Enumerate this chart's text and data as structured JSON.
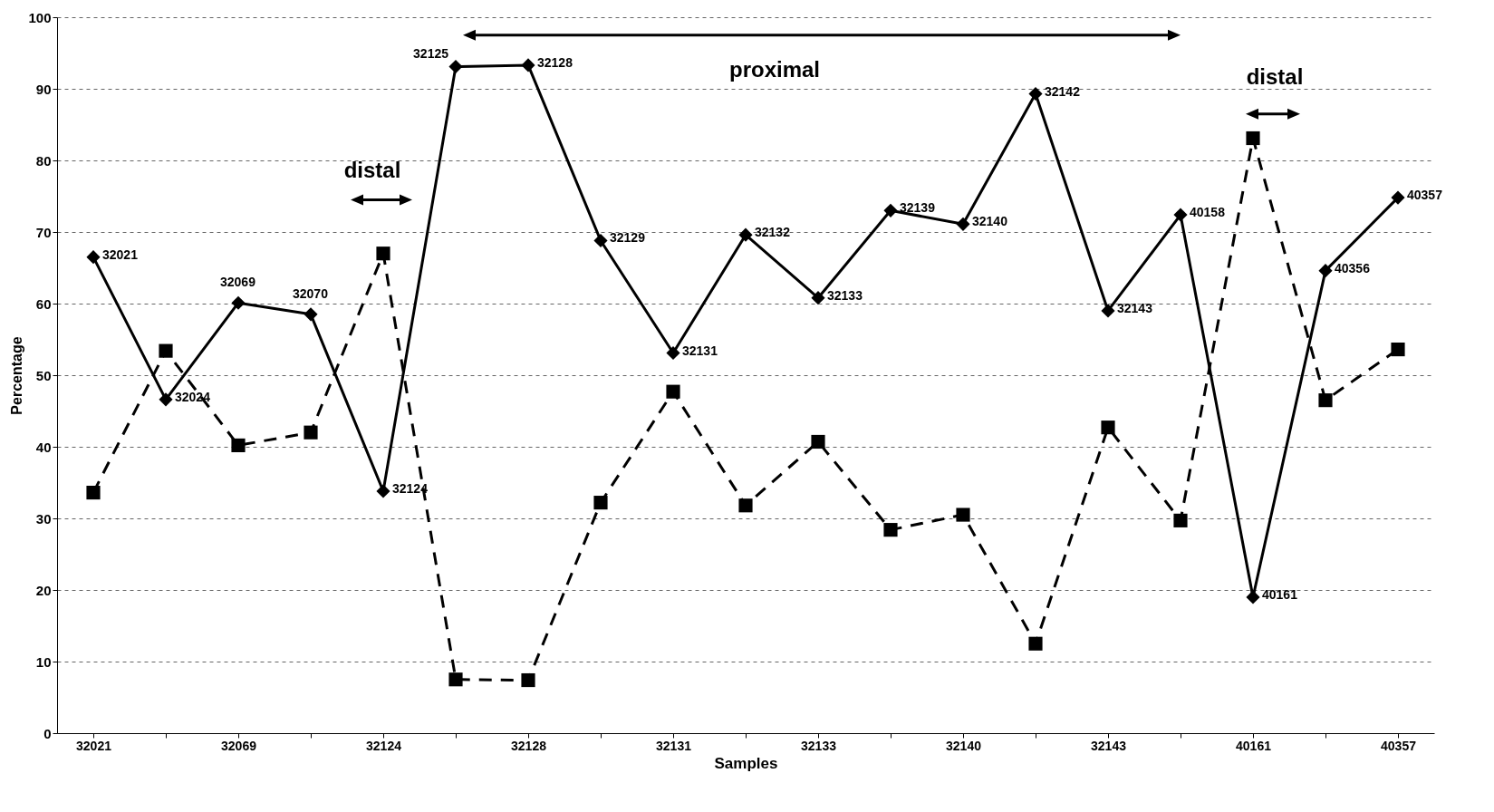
{
  "chart_data": {
    "type": "line",
    "xlabel": "Samples",
    "ylabel": "Percentage",
    "categories": [
      "32021",
      null,
      "32069",
      null,
      "32124",
      null,
      "32128",
      null,
      "32131",
      null,
      "32133",
      null,
      "32140",
      null,
      "32143",
      null,
      "40161",
      null,
      "40357"
    ],
    "series": [
      {
        "color": "#000000",
        "marker": "diamond",
        "line_style": "solid",
        "values": [
          66.5,
          46.6,
          60.1,
          58.5,
          33.8,
          93.1,
          93.3,
          68.8,
          53.1,
          69.6,
          60.8,
          73.0,
          71.1,
          89.3,
          59.0,
          72.4,
          19.0,
          64.6,
          74.8
        ]
      },
      {
        "color": "#000000",
        "marker": "square",
        "line_style": "dashed",
        "values": [
          33.6,
          53.4,
          40.2,
          42.0,
          67.0,
          7.5,
          7.4,
          32.2,
          47.7,
          31.8,
          40.7,
          28.4,
          30.5,
          12.5,
          42.7,
          29.7,
          83.1,
          46.5,
          53.6
        ]
      }
    ],
    "ylim": [
      0,
      100
    ],
    "yticks": [
      0,
      10,
      20,
      30,
      40,
      50,
      60,
      70,
      80,
      90,
      100
    ],
    "grid": "y",
    "annotations": [
      "distal",
      "proximal",
      "distal",
      {
        "text": "32021",
        "x": "32021",
        "y": 66.5
      },
      "32024",
      {
        "text": "32069",
        "x": "32069",
        "y": 60.1
      },
      "32070",
      {
        "text": "32124",
        "x": "32124",
        "y": 33.8
      },
      "32125",
      {
        "text": "32128",
        "x": "32128",
        "y": 93.3
      },
      "32129",
      {
        "text": "32131",
        "x": "32131",
        "y": 53.1
      },
      "32132",
      {
        "text": "32133",
        "x": "32133",
        "y": 60.8
      },
      "32139",
      {
        "text": "32140",
        "x": "32140",
        "y": 71.1
      },
      "32142",
      {
        "text": "32143",
        "x": "32143",
        "y": 59.0
      },
      "40158",
      {
        "text": "40161",
        "x": "40161",
        "y": 19.0
      },
      "40356",
      {
        "text": "40357",
        "x": "40357",
        "y": 74.8
      }
    ]
  }
}
